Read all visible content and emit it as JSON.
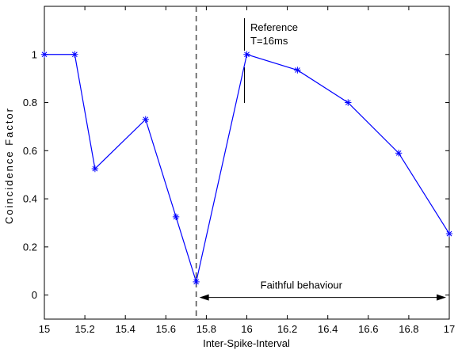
{
  "chart_data": {
    "type": "line",
    "title": "",
    "xlabel": "Inter-Spike-Interval",
    "ylabel": "Coincidence Factor",
    "xlim": [
      15,
      17
    ],
    "ylim": [
      -0.1,
      1.2
    ],
    "xticks": [
      15,
      15.2,
      15.4,
      15.6,
      15.8,
      16,
      16.2,
      16.4,
      16.6,
      16.8,
      17
    ],
    "xtick_labels": [
      "15",
      "15.2",
      "15.4",
      "15.6",
      "15.8",
      "16",
      "16.2",
      "16.4",
      "16.6",
      "16.8",
      "17"
    ],
    "yticks": [
      0,
      0.2,
      0.4,
      0.6,
      0.8,
      1
    ],
    "ytick_labels": [
      "0",
      "0.2",
      "0.4",
      "0.6",
      "0.8",
      "1"
    ],
    "grid": false,
    "series": [
      {
        "color": "#0000ff",
        "marker": "asterisk",
        "x": [
          15,
          15.15,
          15.25,
          15.5,
          15.65,
          15.75,
          16,
          16.25,
          16.5,
          16.75,
          17
        ],
        "y": [
          1.0,
          1.0,
          0.525,
          0.73,
          0.325,
          0.055,
          1.0,
          0.935,
          0.8,
          0.59,
          0.255
        ]
      }
    ],
    "annotations": {
      "dashed_line_x": 15.75,
      "reference": {
        "line1": "Reference",
        "line2": "T=16ms",
        "x": 16
      },
      "faithful": {
        "label": "Faithful behaviour",
        "from_x": 15.75,
        "to_x": 17,
        "y": -0.01
      }
    }
  }
}
